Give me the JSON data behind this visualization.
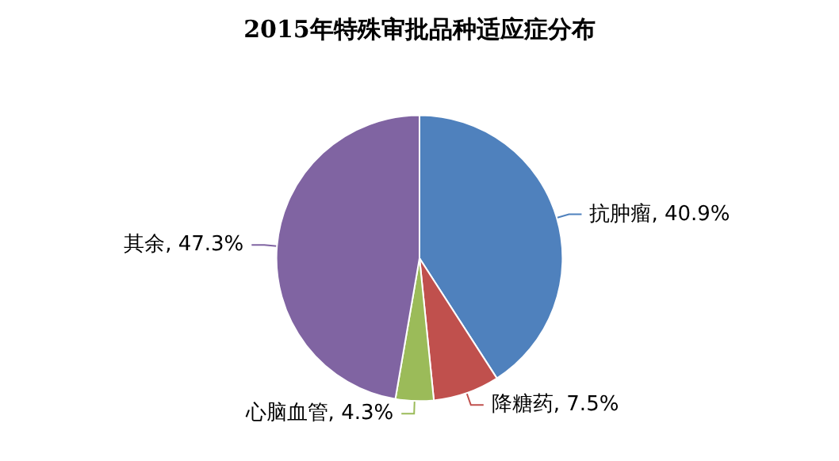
{
  "chart_data": {
    "type": "pie",
    "title": "2015年特殊审批品种适应症分布",
    "categories": [
      "抗肿瘤",
      "降糖药",
      "心脑血管",
      "其余"
    ],
    "values": [
      40.9,
      7.5,
      4.3,
      47.3
    ],
    "value_labels": [
      "40.9%",
      "7.5%",
      "4.3%",
      "47.3%"
    ],
    "colors": [
      "#4f81bd",
      "#c0504d",
      "#9bbb59",
      "#8064a2"
    ],
    "legend": false
  }
}
